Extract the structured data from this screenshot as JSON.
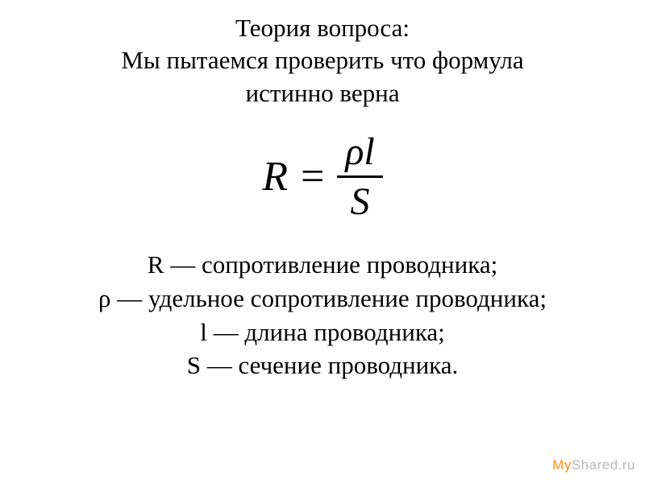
{
  "header": {
    "line1": "Теория вопроса:",
    "line2": "Мы пытаемся проверить что формула",
    "line3": "истинно верна"
  },
  "formula": {
    "lhs": "R",
    "equals": "=",
    "numerator_rho": "ρ",
    "numerator_l": "l",
    "denominator": "S"
  },
  "definitions": {
    "r": "R — сопротивление проводника;",
    "rho": "ρ — удельное сопротивление проводника;",
    "l": "l — длина проводника;",
    "s": "S — сечение проводника."
  },
  "watermark": {
    "part1": "My",
    "part2": "Shared.ru"
  },
  "colors": {
    "background": "#ffffff",
    "text": "#000000",
    "watermark_my": "#ff8c1a",
    "watermark_shared": "#b8b8b8"
  }
}
